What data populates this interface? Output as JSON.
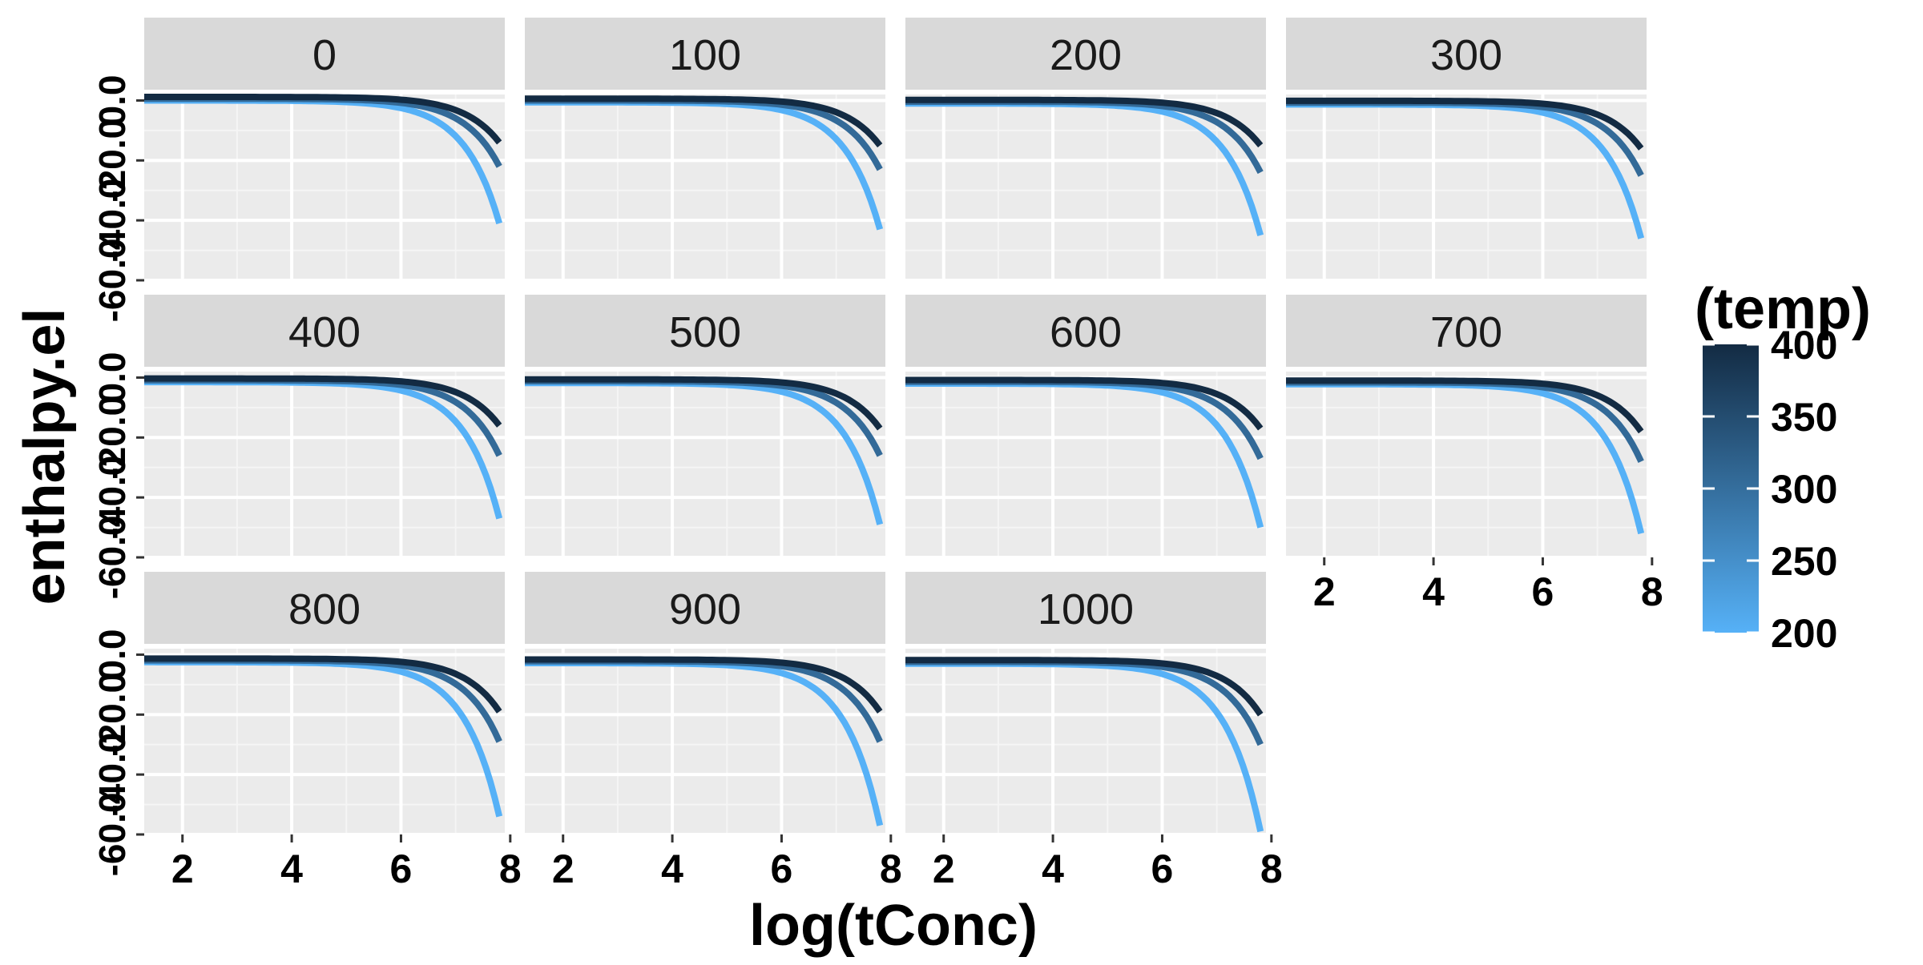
{
  "chart_data": {
    "type": "line",
    "xlabel": "log(tConc)",
    "ylabel": "enthalpy.el",
    "xlim": [
      1.3,
      7.9
    ],
    "ylim": [
      -60,
      2
    ],
    "x_ticks": [
      2,
      4,
      6,
      8
    ],
    "y_ticks": [
      0,
      -20,
      -40,
      -60
    ],
    "y_tick_labels": [
      "0.0",
      "-20.0",
      "-40.0",
      "-60.0"
    ],
    "x_tick_labels": [
      "2",
      "4",
      "6",
      "8"
    ],
    "grid": true,
    "facets": [
      "0",
      "100",
      "200",
      "300",
      "400",
      "500",
      "600",
      "700",
      "800",
      "900",
      "1000"
    ],
    "legend": {
      "title": "(temp)",
      "position": "right",
      "type": "colorbar",
      "range": [
        200,
        400
      ],
      "ticks": [
        "400",
        "350",
        "300",
        "250",
        "200"
      ],
      "low_color": "#56B1F7",
      "high_color": "#132B43"
    },
    "series_by_temp": [
      {
        "temp": 200,
        "color": "#56B1F7",
        "end_values": [
          -41,
          -43,
          -45,
          -46,
          -47,
          -49,
          -50,
          -52,
          -54,
          -57,
          -59
        ]
      },
      {
        "temp": 300,
        "color": "#336A98",
        "end_values": [
          -22,
          -23,
          -24,
          -25,
          -26,
          -26,
          -27,
          -28,
          -29,
          -29,
          -30
        ]
      },
      {
        "temp": 400,
        "color": "#132B43",
        "end_values": [
          -14,
          -15,
          -15,
          -16,
          -16,
          -17,
          -17,
          -18,
          -19,
          -19,
          -20
        ]
      }
    ],
    "x": [
      1.3,
      7.8
    ],
    "baseline_values": [
      0,
      -0.6,
      -1.0,
      -1.3,
      -1.5,
      -1.8,
      -2.0,
      -2.2,
      -2.5,
      -2.8,
      -3.0
    ]
  }
}
